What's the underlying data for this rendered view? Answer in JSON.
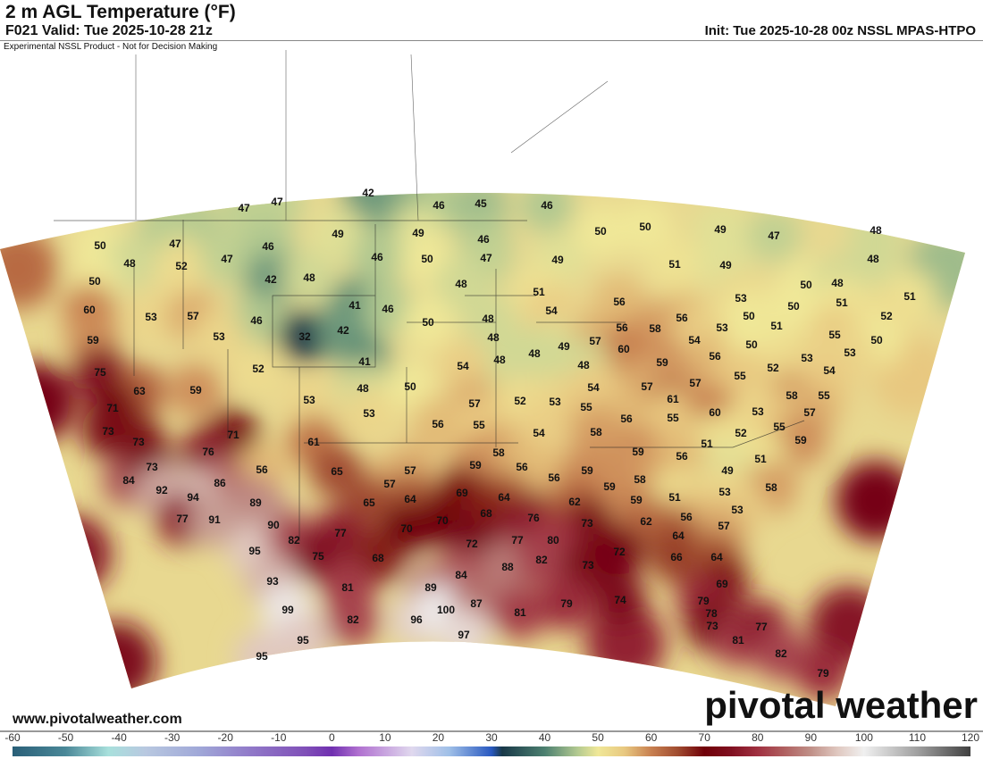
{
  "header": {
    "title": "2 m AGL Temperature (°F)",
    "valid": "F021 Valid: Tue 2025-10-28 21z",
    "init": "Init: Tue 2025-10-28 00z NSSL MPAS-HTPO"
  },
  "map": {
    "disclaimer": "Experimental NSSL Product - Not for Decision Making",
    "temperature_labels": [
      47,
      47,
      42,
      46,
      45,
      46,
      50,
      47,
      52,
      47,
      46,
      49,
      49,
      46,
      50,
      50,
      49,
      47,
      48,
      48,
      46,
      50,
      47,
      49,
      51,
      49,
      48,
      50,
      42,
      48,
      48,
      51,
      50,
      48,
      51,
      60,
      53,
      57,
      46,
      41,
      46,
      50,
      48,
      54,
      56,
      56,
      53,
      51,
      52,
      59,
      53,
      32,
      42,
      48,
      49,
      57,
      56,
      58,
      54,
      53,
      50,
      51,
      50,
      55,
      50,
      60,
      48,
      48,
      48,
      59,
      56,
      50,
      53,
      53,
      52,
      54,
      75,
      63,
      59,
      52,
      41,
      48,
      50,
      54,
      54,
      57,
      57,
      55,
      58,
      55,
      71,
      53,
      53,
      57,
      52,
      53,
      55,
      61,
      56,
      55,
      60,
      53,
      57,
      73,
      71,
      56,
      55,
      54,
      58,
      52,
      55,
      59,
      73,
      76,
      61,
      56,
      65,
      58,
      59,
      56,
      59,
      51,
      56,
      51,
      57,
      84,
      73,
      92,
      86,
      94,
      57,
      69,
      64,
      56,
      59,
      58,
      59,
      49,
      53,
      58,
      89,
      65,
      64,
      77,
      91,
      90,
      70,
      70,
      68,
      76,
      62,
      59,
      51,
      56,
      53,
      73,
      62,
      95,
      82,
      77,
      72,
      77,
      80,
      64,
      57,
      75,
      68,
      88,
      82,
      73,
      72,
      66,
      64,
      93,
      81,
      89,
      84,
      69,
      99,
      82,
      96,
      100,
      87,
      81,
      79,
      74,
      79,
      78,
      73,
      95,
      97,
      81,
      77,
      95,
      82,
      79
    ]
  },
  "footer": {
    "website": "www.pivotalweather.com",
    "brand": "pivotal weather"
  },
  "colorbar": {
    "units": "°F",
    "ticks": [
      "-60",
      "-50",
      "-40",
      "-30",
      "-20",
      "-10",
      "0",
      "10",
      "20",
      "30",
      "40",
      "50",
      "60",
      "70",
      "80",
      "90",
      "100",
      "110",
      "120"
    ],
    "range": [
      -60,
      120
    ],
    "stops": [
      [
        -60,
        "#2a5f78"
      ],
      [
        -50,
        "#4a8898"
      ],
      [
        -42,
        "#a8e0dc"
      ],
      [
        -35,
        "#b8c8e0"
      ],
      [
        -25,
        "#a0a8d8"
      ],
      [
        -15,
        "#9078c8"
      ],
      [
        -5,
        "#8050b8"
      ],
      [
        0,
        "#7030b0"
      ],
      [
        5,
        "#b070d0"
      ],
      [
        15,
        "#e0d8ee"
      ],
      [
        22,
        "#a0c0e8"
      ],
      [
        30,
        "#2858c0"
      ],
      [
        32,
        "#183848"
      ],
      [
        40,
        "#4c8070"
      ],
      [
        46,
        "#b0c890"
      ],
      [
        50,
        "#f0e898"
      ],
      [
        55,
        "#e8c880"
      ],
      [
        60,
        "#c88050"
      ],
      [
        65,
        "#a04c30"
      ],
      [
        70,
        "#700008"
      ],
      [
        75,
        "#801020"
      ],
      [
        80,
        "#a03040"
      ],
      [
        85,
        "#b06060"
      ],
      [
        90,
        "#c09088"
      ],
      [
        95,
        "#e0c8c0"
      ],
      [
        100,
        "#f0f0f0"
      ],
      [
        110,
        "#a0a0a0"
      ],
      [
        120,
        "#404040"
      ]
    ]
  }
}
